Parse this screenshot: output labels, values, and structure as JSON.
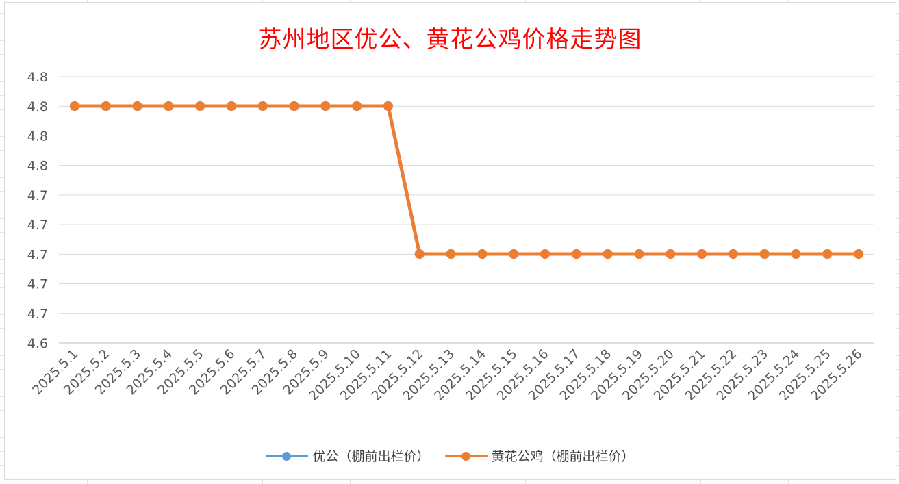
{
  "chart_data": {
    "type": "line",
    "title": "苏州地区优公、黄花公鸡价格走势图",
    "categories": [
      "2025.5.1",
      "2025.5.2",
      "2025.5.3",
      "2025.5.4",
      "2025.5.5",
      "2025.5.6",
      "2025.5.7",
      "2025.5.8",
      "2025.5.9",
      "2025.5.10",
      "2025.5.11",
      "2025.5.12",
      "2025.5.13",
      "2025.5.14",
      "2025.5.15",
      "2025.5.16",
      "2025.5.17",
      "2025.5.18",
      "2025.5.19",
      "2025.5.20",
      "2025.5.21",
      "2025.5.22",
      "2025.5.23",
      "2025.5.24",
      "2025.5.25",
      "2025.5.26"
    ],
    "y_tick_labels": [
      "4.8",
      "4.8",
      "4.8",
      "4.8",
      "4.7",
      "4.7",
      "4.7",
      "4.7",
      "4.7",
      "4.6"
    ],
    "ylim": [
      4.6,
      4.8
    ],
    "grid": true,
    "legend_position": "bottom",
    "series": [
      {
        "name": "优公（棚前出栏价）",
        "color": "#5b9bd5",
        "values": [
          4.8,
          4.8,
          4.8,
          4.8,
          4.8,
          4.8,
          4.8,
          4.8,
          4.8,
          4.8,
          4.8,
          4.7,
          4.7,
          4.7,
          4.7,
          4.7,
          4.7,
          4.7,
          4.7,
          4.7,
          4.7,
          4.7,
          4.7,
          4.7,
          4.7,
          4.7
        ]
      },
      {
        "name": "黄花公鸡（棚前出栏价）",
        "color": "#ed7d31",
        "values": [
          4.8,
          4.8,
          4.8,
          4.8,
          4.8,
          4.8,
          4.8,
          4.8,
          4.8,
          4.8,
          4.8,
          4.7,
          4.7,
          4.7,
          4.7,
          4.7,
          4.7,
          4.7,
          4.7,
          4.7,
          4.7,
          4.7,
          4.7,
          4.7,
          4.7,
          4.7
        ]
      }
    ]
  }
}
